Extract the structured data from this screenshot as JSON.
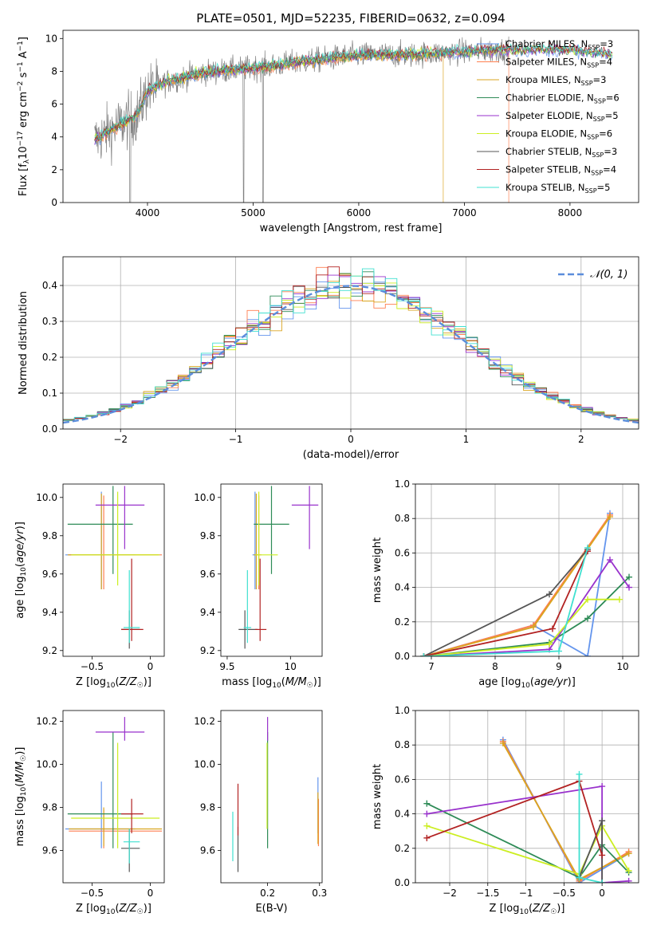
{
  "colors": {
    "Chabrier MILES": "#6495ed",
    "Salpeter MILES": "#ff7f50",
    "Kroupa MILES": "#daa520",
    "Chabrier ELODIE": "#2e8b57",
    "Salpeter ELODIE": "#9932cc",
    "Kroupa ELODIE": "#ccee22",
    "Chabrier STELIB": "#555555",
    "Salpeter STELIB": "#b22222",
    "Kroupa STELIB": "#40e0d0",
    "gauss": "#5b8ddb",
    "spectrum": "#808080"
  },
  "chart_data": [
    {
      "type": "line",
      "title": "PLATE=0501, MJD=52235, FIBERID=0632, z=0.094",
      "xlabel": "wavelength [Angstrom, rest frame]",
      "ylabel": "Flux [fλ10⁻¹⁷ erg cm⁻² s⁻¹ A⁻¹]",
      "xlim": [
        3200,
        8650
      ],
      "ylim": [
        0,
        10.5
      ],
      "xticks": [
        4000,
        5000,
        6000,
        7000,
        8000
      ],
      "yticks": [
        0,
        2,
        4,
        6,
        8,
        10
      ],
      "legend": [
        "Chabrier MILES, N_SSP=3",
        "Salpeter MILES, N_SSP=4",
        "Kroupa MILES, N_SSP=3",
        "Chabrier ELODIE, N_SSP=6",
        "Salpeter ELODIE, N_SSP=5",
        "Kroupa ELODIE, N_SSP=6",
        "Chabrier STELIB, N_SSP=3",
        "Salpeter STELIB, N_SSP=4",
        "Kroupa STELIB, N_SSP=5"
      ],
      "legend_loc": "lower right",
      "continuum": {
        "x": [
          3500,
          3700,
          3900,
          4000,
          4200,
          4500,
          5000,
          5500,
          6000,
          6500,
          7000,
          7400,
          8000,
          8400
        ],
        "y": [
          3.8,
          4.6,
          5.3,
          6.8,
          7.4,
          7.9,
          8.2,
          8.6,
          9.0,
          9.0,
          9.2,
          9.3,
          9.3,
          9.0
        ]
      },
      "spectrum_wavelength_range": [
        3500,
        7420
      ],
      "model_wavelength_range": [
        3500,
        8400
      ]
    },
    {
      "type": "bar",
      "xlabel": "(data-model)/error",
      "ylabel": "Normed distribution",
      "xlim": [
        -2.5,
        2.5
      ],
      "ylim": [
        0,
        0.48
      ],
      "xticks": [
        -2,
        -1,
        0,
        1,
        2
      ],
      "yticks": [
        0.0,
        0.1,
        0.2,
        0.3,
        0.4
      ],
      "bin_width": 0.1,
      "reference_curve": "N(0,1)",
      "legend": [
        "𝒩(0, 1)"
      ],
      "legend_loc": "upper right",
      "grid": true,
      "histograms": "nine step histograms, one per model, scattered around the N(0,1) density"
    },
    {
      "type": "scatter",
      "xlabel": "Z [log10(Z/Z☉)]",
      "ylabel": "age  [log10(age/yr)]",
      "xlim": [
        -0.75,
        0.12
      ],
      "ylim": [
        9.17,
        10.07
      ],
      "xticks": [
        -0.5,
        0.0
      ],
      "yticks": [
        9.2,
        9.4,
        9.6,
        9.8,
        10.0
      ],
      "points": [
        {
          "model": "Chabrier MILES",
          "x": -0.42,
          "y": 9.7,
          "xerr": [
            0.31,
            0.29
          ],
          "yerr": [
            0.18,
            0.33
          ]
        },
        {
          "model": "Salpeter MILES",
          "x": -0.4,
          "y": 9.7,
          "xerr": [
            0.3,
            0.5
          ],
          "yerr": [
            0.18,
            0.31
          ]
        },
        {
          "model": "Kroupa MILES",
          "x": -0.42,
          "y": 9.7,
          "xerr": [
            0.29,
            0.49
          ],
          "yerr": [
            0.18,
            0.32
          ]
        },
        {
          "model": "Chabrier ELODIE",
          "x": -0.32,
          "y": 9.86,
          "xerr": [
            0.39,
            0.17
          ],
          "yerr": [
            0.26,
            0.2
          ]
        },
        {
          "model": "Salpeter ELODIE",
          "x": -0.22,
          "y": 9.96,
          "xerr": [
            0.25,
            0.17
          ],
          "yerr": [
            0.23,
            0.1
          ]
        },
        {
          "model": "Kroupa ELODIE",
          "x": -0.28,
          "y": 9.7,
          "xerr": [
            0.4,
            0.36
          ],
          "yerr": [
            0.16,
            0.33
          ]
        },
        {
          "model": "Chabrier STELIB",
          "x": -0.18,
          "y": 9.31,
          "xerr": [
            0.07,
            0.09
          ],
          "yerr": [
            0.1,
            0.1
          ]
        },
        {
          "model": "Salpeter STELIB",
          "x": -0.16,
          "y": 9.31,
          "xerr": [
            0.09,
            0.1
          ],
          "yerr": [
            0.06,
            0.37
          ]
        },
        {
          "model": "Kroupa STELIB",
          "x": -0.18,
          "y": 9.32,
          "xerr": [
            0.05,
            0.09
          ],
          "yerr": [
            0.08,
            0.3
          ]
        }
      ]
    },
    {
      "type": "scatter",
      "xlabel": "mass [log10(M/M☉)]",
      "xlim": [
        9.45,
        10.25
      ],
      "ylim": [
        9.17,
        10.07
      ],
      "xticks": [
        9.5,
        10.0
      ],
      "yticks": [
        9.2,
        9.4,
        9.6,
        9.8,
        10.0
      ],
      "points": [
        {
          "model": "Chabrier MILES",
          "x": 9.72,
          "y": 9.7,
          "xerr": [
            0.02,
            0.02
          ],
          "yerr": [
            0.18,
            0.33
          ]
        },
        {
          "model": "Salpeter MILES",
          "x": 9.75,
          "y": 9.7,
          "xerr": [
            0.02,
            0.02
          ],
          "yerr": [
            0.18,
            0.31
          ]
        },
        {
          "model": "Kroupa MILES",
          "x": 9.73,
          "y": 9.7,
          "xerr": [
            0.02,
            0.02
          ],
          "yerr": [
            0.18,
            0.32
          ]
        },
        {
          "model": "Chabrier ELODIE",
          "x": 9.85,
          "y": 9.86,
          "xerr": [
            0.14,
            0.14
          ],
          "yerr": [
            0.26,
            0.2
          ]
        },
        {
          "model": "Salpeter ELODIE",
          "x": 10.15,
          "y": 9.96,
          "xerr": [
            0.14,
            0.07
          ],
          "yerr": [
            0.23,
            0.1
          ]
        },
        {
          "model": "Kroupa ELODIE",
          "x": 9.75,
          "y": 9.7,
          "xerr": [
            0.03,
            0.15
          ],
          "yerr": [
            0.16,
            0.33
          ]
        },
        {
          "model": "Chabrier STELIB",
          "x": 9.64,
          "y": 9.31,
          "xerr": [
            0.05,
            0.1
          ],
          "yerr": [
            0.1,
            0.1
          ]
        },
        {
          "model": "Salpeter STELIB",
          "x": 9.76,
          "y": 9.31,
          "xerr": [
            0.04,
            0.05
          ],
          "yerr": [
            0.06,
            0.37
          ]
        },
        {
          "model": "Kroupa STELIB",
          "x": 9.66,
          "y": 9.32,
          "xerr": [
            0.03,
            0.03
          ],
          "yerr": [
            0.08,
            0.3
          ]
        }
      ]
    },
    {
      "type": "line",
      "xlabel": "age  [log10(age/yr)]",
      "ylabel": "mass weight",
      "xlim": [
        6.75,
        10.25
      ],
      "ylim": [
        0.0,
        1.0
      ],
      "xticks": [
        7,
        8,
        9,
        10
      ],
      "yticks": [
        0.0,
        0.2,
        0.4,
        0.6,
        0.8,
        1.0
      ],
      "grid": true,
      "series": [
        {
          "model": "Chabrier MILES",
          "x": [
            6.88,
            8.6,
            9.45,
            9.8
          ],
          "y": [
            0.0,
            0.18,
            0.0,
            0.83
          ]
        },
        {
          "model": "Salpeter MILES",
          "x": [
            6.88,
            8.6,
            9.8
          ],
          "y": [
            0.0,
            0.18,
            0.82
          ]
        },
        {
          "model": "Kroupa MILES",
          "x": [
            6.88,
            8.6,
            9.8
          ],
          "y": [
            0.0,
            0.17,
            0.81
          ]
        },
        {
          "model": "Chabrier ELODIE",
          "x": [
            6.88,
            8.85,
            9.45,
            10.1
          ],
          "y": [
            0.0,
            0.08,
            0.22,
            0.46
          ]
        },
        {
          "model": "Salpeter ELODIE",
          "x": [
            6.88,
            8.85,
            9.8,
            10.1
          ],
          "y": [
            0.0,
            0.04,
            0.56,
            0.4
          ]
        },
        {
          "model": "Kroupa ELODIE",
          "x": [
            6.88,
            8.85,
            9.45,
            9.95
          ],
          "y": [
            0.0,
            0.07,
            0.33,
            0.33
          ]
        },
        {
          "model": "Chabrier STELIB",
          "x": [
            6.88,
            8.85,
            9.45
          ],
          "y": [
            0.0,
            0.36,
            0.62
          ]
        },
        {
          "model": "Salpeter STELIB",
          "x": [
            6.88,
            8.9,
            9.45
          ],
          "y": [
            0.0,
            0.16,
            0.61
          ]
        },
        {
          "model": "Kroupa STELIB",
          "x": [
            6.88,
            9.0,
            9.45
          ],
          "y": [
            0.0,
            0.03,
            0.63
          ]
        }
      ]
    },
    {
      "type": "scatter",
      "xlabel": "Z [log10(Z/Z☉)]",
      "ylabel": "mass [log10(M/M☉)]",
      "xlim": [
        -0.75,
        0.12
      ],
      "ylim": [
        9.45,
        10.25
      ],
      "xticks": [
        -0.5,
        0.0
      ],
      "yticks": [
        9.6,
        9.8,
        10.0,
        10.2
      ],
      "points": [
        {
          "model": "Chabrier MILES",
          "x": -0.42,
          "y": 9.7,
          "xerr": [
            0.31,
            0.29
          ],
          "yerr": [
            0.09,
            0.22
          ]
        },
        {
          "model": "Salpeter MILES",
          "x": -0.4,
          "y": 9.69,
          "xerr": [
            0.3,
            0.5
          ],
          "yerr": [
            0.08,
            0.1
          ]
        },
        {
          "model": "Kroupa MILES",
          "x": -0.4,
          "y": 9.7,
          "xerr": [
            0.3,
            0.5
          ],
          "yerr": [
            0.08,
            0.1
          ]
        },
        {
          "model": "Chabrier ELODIE",
          "x": -0.32,
          "y": 9.77,
          "xerr": [
            0.39,
            0.17
          ],
          "yerr": [
            0.16,
            0.38
          ]
        },
        {
          "model": "Salpeter ELODIE",
          "x": -0.22,
          "y": 10.15,
          "xerr": [
            0.25,
            0.17
          ],
          "yerr": [
            0.04,
            0.07
          ]
        },
        {
          "model": "Kroupa ELODIE",
          "x": -0.28,
          "y": 9.75,
          "xerr": [
            0.4,
            0.36
          ],
          "yerr": [
            0.14,
            0.35
          ]
        },
        {
          "model": "Chabrier STELIB",
          "x": -0.18,
          "y": 9.61,
          "xerr": [
            0.07,
            0.09
          ],
          "yerr": [
            0.11,
            0.09
          ]
        },
        {
          "model": "Salpeter STELIB",
          "x": -0.16,
          "y": 9.77,
          "xerr": [
            0.09,
            0.1
          ],
          "yerr": [
            0.09,
            0.07
          ]
        },
        {
          "model": "Kroupa STELIB",
          "x": -0.18,
          "y": 9.64,
          "xerr": [
            0.05,
            0.09
          ],
          "yerr": [
            0.1,
            0.06
          ]
        }
      ]
    },
    {
      "type": "scatter",
      "xlabel": "E(B-V)",
      "xlim": [
        0.11,
        0.305
      ],
      "ylim": [
        9.45,
        10.25
      ],
      "xticks": [
        0.2,
        0.3
      ],
      "yticks": [
        9.6,
        9.8,
        10.0,
        10.2
      ],
      "points": [
        {
          "model": "Chabrier MILES",
          "x": 0.297,
          "y": 9.8,
          "yerr": [
            0.12,
            0.14
          ]
        },
        {
          "model": "Salpeter MILES",
          "x": 0.298,
          "y": 9.72,
          "yerr": [
            0.1,
            0.12
          ]
        },
        {
          "model": "Kroupa MILES",
          "x": 0.297,
          "y": 9.75,
          "yerr": [
            0.12,
            0.12
          ]
        },
        {
          "model": "Chabrier ELODIE",
          "x": 0.2,
          "y": 9.77,
          "yerr": [
            0.16,
            0.38
          ]
        },
        {
          "model": "Salpeter ELODIE",
          "x": 0.2,
          "y": 10.15,
          "yerr": [
            0.04,
            0.07
          ]
        },
        {
          "model": "Kroupa ELODIE",
          "x": 0.199,
          "y": 9.84,
          "yerr": [
            0.14,
            0.26
          ]
        },
        {
          "model": "Chabrier STELIB",
          "x": 0.143,
          "y": 9.63,
          "yerr": [
            0.13,
            0.08
          ]
        },
        {
          "model": "Salpeter STELIB",
          "x": 0.143,
          "y": 9.8,
          "yerr": [
            0.13,
            0.11
          ]
        },
        {
          "model": "Kroupa STELIB",
          "x": 0.133,
          "y": 9.66,
          "yerr": [
            0.11,
            0.12
          ]
        }
      ]
    },
    {
      "type": "line",
      "xlabel": "Z [log10(Z/Z☉)]",
      "ylabel": "mass weight",
      "xlim": [
        -2.45,
        0.48
      ],
      "ylim": [
        0.0,
        1.0
      ],
      "xticks": [
        -2.0,
        -1.5,
        -1.0,
        -0.5,
        0.0
      ],
      "yticks": [
        0.0,
        0.2,
        0.4,
        0.6,
        0.8,
        1.0
      ],
      "grid": true,
      "series": [
        {
          "model": "Chabrier MILES",
          "x": [
            -1.3,
            -0.3,
            0.35
          ],
          "y": [
            0.83,
            0.0,
            0.17
          ]
        },
        {
          "model": "Salpeter MILES",
          "x": [
            -1.3,
            -0.3,
            0.35
          ],
          "y": [
            0.82,
            0.01,
            0.18
          ]
        },
        {
          "model": "Kroupa MILES",
          "x": [
            -1.3,
            -0.3,
            0.35
          ],
          "y": [
            0.81,
            0.02,
            0.17
          ]
        },
        {
          "model": "Chabrier ELODIE",
          "x": [
            -2.3,
            -0.3,
            0.0,
            0.35
          ],
          "y": [
            0.46,
            0.03,
            0.22,
            0.06
          ]
        },
        {
          "model": "Salpeter ELODIE",
          "x": [
            -2.3,
            0.0,
            0.0,
            0.35
          ],
          "y": [
            0.4,
            0.56,
            0.0,
            0.01
          ]
        },
        {
          "model": "Kroupa ELODIE",
          "x": [
            -2.3,
            -0.3,
            0.0,
            0.35
          ],
          "y": [
            0.33,
            0.05,
            0.33,
            0.07
          ]
        },
        {
          "model": "Chabrier STELIB",
          "x": [
            -0.3,
            0.0,
            0.0
          ],
          "y": [
            0.03,
            0.36,
            0.0
          ]
        },
        {
          "model": "Salpeter STELIB",
          "x": [
            -2.3,
            -0.3,
            0.0
          ],
          "y": [
            0.26,
            0.59,
            0.16
          ]
        },
        {
          "model": "Kroupa STELIB",
          "x": [
            -0.3,
            -0.3,
            0.0
          ],
          "y": [
            0.63,
            0.03,
            0.0
          ]
        }
      ]
    }
  ]
}
